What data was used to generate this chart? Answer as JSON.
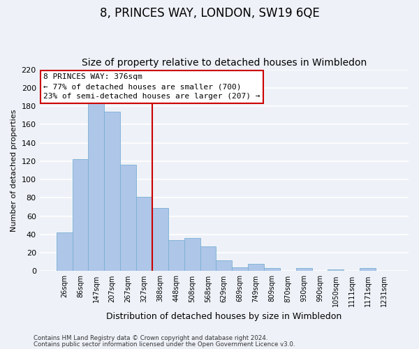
{
  "title": "8, PRINCES WAY, LONDON, SW19 6QE",
  "subtitle": "Size of property relative to detached houses in Wimbledon",
  "xlabel": "Distribution of detached houses by size in Wimbledon",
  "ylabel": "Number of detached properties",
  "categories": [
    "26sqm",
    "86sqm",
    "147sqm",
    "207sqm",
    "267sqm",
    "327sqm",
    "388sqm",
    "448sqm",
    "508sqm",
    "568sqm",
    "629sqm",
    "689sqm",
    "749sqm",
    "809sqm",
    "870sqm",
    "930sqm",
    "990sqm",
    "1050sqm",
    "1111sqm",
    "1171sqm",
    "1231sqm"
  ],
  "values": [
    42,
    122,
    184,
    174,
    116,
    81,
    69,
    34,
    36,
    27,
    12,
    4,
    8,
    3,
    0,
    3,
    0,
    2,
    0,
    3,
    0
  ],
  "bar_color": "#aec6e8",
  "bar_edge_color": "#7aafd4",
  "vline_color": "#cc0000",
  "vline_index": 6,
  "annotation_title": "8 PRINCES WAY: 376sqm",
  "annotation_line1": "← 77% of detached houses are smaller (700)",
  "annotation_line2": "23% of semi-detached houses are larger (207) →",
  "annotation_box_color": "#ffffff",
  "annotation_box_edge": "#cc0000",
  "ylim": [
    0,
    220
  ],
  "yticks": [
    0,
    20,
    40,
    60,
    80,
    100,
    120,
    140,
    160,
    180,
    200,
    220
  ],
  "footer1": "Contains HM Land Registry data © Crown copyright and database right 2024.",
  "footer2": "Contains public sector information licensed under the Open Government Licence v3.0.",
  "bg_color": "#eef2f8",
  "grid_color": "#ffffff",
  "title_fontsize": 12,
  "subtitle_fontsize": 10,
  "tick_fontsize": 7,
  "ylabel_fontsize": 8,
  "xlabel_fontsize": 9
}
